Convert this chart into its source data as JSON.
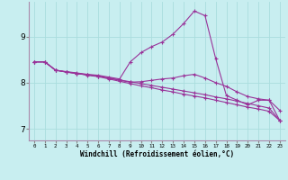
{
  "xlabel": "Windchill (Refroidissement éolien,°C)",
  "background_color": "#c8eef0",
  "grid_color": "#aadddd",
  "line_color": "#993399",
  "xlim": [
    -0.5,
    23.5
  ],
  "ylim": [
    6.75,
    9.75
  ],
  "yticks": [
    7,
    8,
    9
  ],
  "xticks": [
    0,
    1,
    2,
    3,
    4,
    5,
    6,
    7,
    8,
    9,
    10,
    11,
    12,
    13,
    14,
    15,
    16,
    17,
    18,
    19,
    20,
    21,
    22,
    23
  ],
  "series1_x": [
    0,
    1,
    2,
    3,
    4,
    5,
    6,
    7,
    8,
    9,
    10,
    11,
    12,
    13,
    14,
    15,
    16,
    17,
    18,
    19,
    20,
    21,
    22,
    23
  ],
  "series1_y": [
    8.45,
    8.45,
    8.27,
    8.24,
    8.21,
    8.18,
    8.16,
    8.12,
    8.08,
    8.45,
    8.65,
    8.78,
    8.88,
    9.05,
    9.28,
    9.55,
    9.45,
    8.52,
    7.72,
    7.62,
    7.52,
    7.62,
    7.62,
    7.18
  ],
  "series2_x": [
    0,
    1,
    2,
    3,
    4,
    5,
    6,
    7,
    8,
    9,
    10,
    11,
    12,
    13,
    14,
    15,
    16,
    17,
    18,
    19,
    20,
    21,
    22,
    23
  ],
  "series2_y": [
    8.45,
    8.45,
    8.27,
    8.23,
    8.2,
    8.17,
    8.14,
    8.1,
    8.06,
    8.02,
    7.98,
    7.94,
    7.9,
    7.86,
    7.82,
    7.78,
    7.74,
    7.69,
    7.65,
    7.6,
    7.55,
    7.5,
    7.45,
    7.18
  ],
  "series3_x": [
    0,
    1,
    2,
    3,
    4,
    5,
    6,
    7,
    8,
    9,
    10,
    11,
    12,
    13,
    14,
    15,
    16,
    17,
    18,
    19,
    20,
    21,
    22,
    23
  ],
  "series3_y": [
    8.45,
    8.45,
    8.27,
    8.23,
    8.2,
    8.16,
    8.13,
    8.08,
    8.03,
    7.98,
    7.93,
    7.89,
    7.84,
    7.8,
    7.75,
    7.71,
    7.67,
    7.62,
    7.57,
    7.52,
    7.47,
    7.43,
    7.38,
    7.18
  ],
  "series4_x": [
    0,
    1,
    2,
    3,
    4,
    5,
    6,
    7,
    8,
    9,
    10,
    11,
    12,
    13,
    14,
    15,
    16,
    17,
    18,
    19,
    20,
    21,
    22,
    23
  ],
  "series4_y": [
    8.45,
    8.45,
    8.27,
    8.23,
    8.2,
    8.17,
    8.14,
    8.1,
    8.05,
    8.01,
    8.02,
    8.05,
    8.08,
    8.1,
    8.15,
    8.18,
    8.1,
    8.0,
    7.92,
    7.8,
    7.7,
    7.65,
    7.62,
    7.4
  ]
}
